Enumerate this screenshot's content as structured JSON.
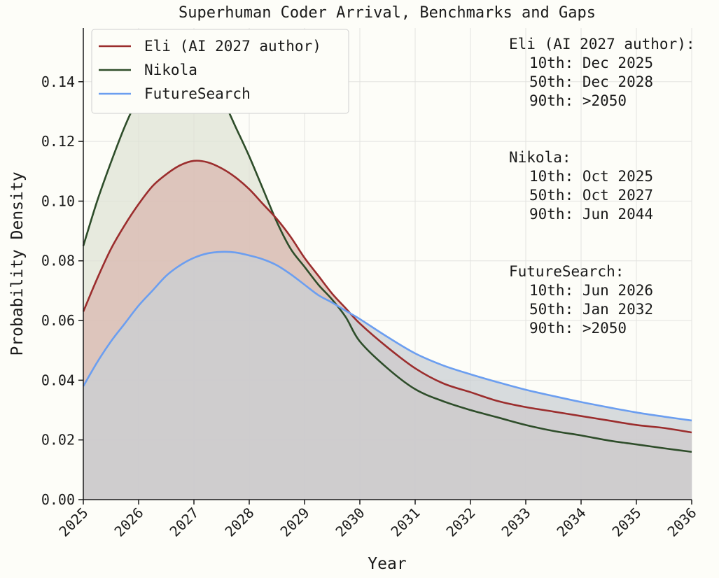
{
  "chart_data": {
    "type": "area",
    "title": "Superhuman Coder Arrival, Benchmarks and Gaps",
    "xlabel": "Year",
    "ylabel": "Probability Density",
    "xlim": [
      2025,
      2036
    ],
    "ylim": [
      0,
      0.158
    ],
    "x_ticks": [
      "2025",
      "2026",
      "2027",
      "2028",
      "2029",
      "2030",
      "2031",
      "2032",
      "2033",
      "2034",
      "2035",
      "2036"
    ],
    "y_ticks": [
      "0.00",
      "0.02",
      "0.04",
      "0.06",
      "0.08",
      "0.10",
      "0.12",
      "0.14"
    ],
    "grid": true,
    "legend_position": "top-left",
    "x": [
      2025.0,
      2025.25,
      2025.5,
      2025.75,
      2026.0,
      2026.25,
      2026.5,
      2026.75,
      2027.0,
      2027.25,
      2027.5,
      2027.75,
      2028.0,
      2028.25,
      2028.5,
      2028.75,
      2029.0,
      2029.25,
      2029.5,
      2029.75,
      2030.0,
      2030.5,
      2031.0,
      2031.5,
      2032.0,
      2032.5,
      2033.0,
      2033.5,
      2034.0,
      2034.5,
      2035.0,
      2035.5,
      2036.0
    ],
    "series": [
      {
        "name": "Eli (AI 2027 author)",
        "color": "#9b2d2d",
        "fill": "#d9b8b0",
        "values": [
          0.063,
          0.074,
          0.084,
          0.092,
          0.099,
          0.105,
          0.109,
          0.112,
          0.1135,
          0.113,
          0.111,
          0.108,
          0.104,
          0.099,
          0.094,
          0.088,
          0.081,
          0.075,
          0.069,
          0.064,
          0.059,
          0.051,
          0.044,
          0.039,
          0.036,
          0.033,
          0.031,
          0.0295,
          0.028,
          0.0265,
          0.025,
          0.024,
          0.0225
        ]
      },
      {
        "name": "Nikola",
        "color": "#2e4d2a",
        "fill": "#dfe3d6",
        "values": [
          0.085,
          0.1,
          0.113,
          0.125,
          0.135,
          0.143,
          0.148,
          0.15,
          0.148,
          0.143,
          0.135,
          0.125,
          0.115,
          0.104,
          0.093,
          0.084,
          0.078,
          0.072,
          0.067,
          0.061,
          0.053,
          0.044,
          0.037,
          0.033,
          0.03,
          0.0275,
          0.025,
          0.023,
          0.0215,
          0.0198,
          0.0185,
          0.0172,
          0.016
        ]
      },
      {
        "name": "FutureSearch",
        "color": "#6b9ef0",
        "fill": "#c9cfd4",
        "values": [
          0.038,
          0.046,
          0.053,
          0.059,
          0.065,
          0.07,
          0.075,
          0.0785,
          0.081,
          0.0825,
          0.083,
          0.0828,
          0.0818,
          0.0805,
          0.0785,
          0.0755,
          0.072,
          0.0685,
          0.066,
          0.0632,
          0.0605,
          0.0545,
          0.049,
          0.045,
          0.042,
          0.0393,
          0.0368,
          0.0347,
          0.0327,
          0.0309,
          0.0292,
          0.0278,
          0.0265
        ]
      }
    ],
    "annotations": [
      {
        "heading": "Eli (AI 2027 author):",
        "lines": [
          "10th: Dec 2025",
          "50th: Dec 2028",
          "90th: >2050"
        ]
      },
      {
        "heading": "Nikola:",
        "lines": [
          "10th: Oct 2025",
          "50th: Oct 2027",
          "90th: Jun 2044"
        ]
      },
      {
        "heading": "FutureSearch:",
        "lines": [
          "10th: Jun 2026",
          "50th: Jan 2032",
          "90th: >2050"
        ]
      }
    ]
  }
}
